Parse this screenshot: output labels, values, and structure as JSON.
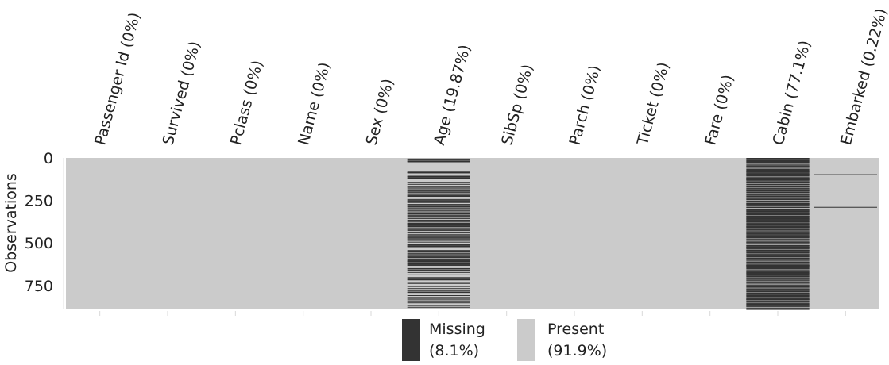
{
  "chart_data": {
    "type": "heatmap",
    "ylabel": "Observations",
    "y_ticks": [
      0,
      250,
      500,
      750
    ],
    "ylim": [
      0,
      891
    ],
    "columns": [
      {
        "label": "Passenger Id (0%)",
        "missing_pct": 0
      },
      {
        "label": "Survived (0%)",
        "missing_pct": 0
      },
      {
        "label": "Pclass (0%)",
        "missing_pct": 0
      },
      {
        "label": "Name (0%)",
        "missing_pct": 0
      },
      {
        "label": "Sex (0%)",
        "missing_pct": 0
      },
      {
        "label": "Age (19.87%)",
        "missing_pct": 19.87
      },
      {
        "label": "SibSp (0%)",
        "missing_pct": 0
      },
      {
        "label": "Parch (0%)",
        "missing_pct": 0
      },
      {
        "label": "Ticket (0%)",
        "missing_pct": 0
      },
      {
        "label": "Fare (0%)",
        "missing_pct": 0
      },
      {
        "label": "Cabin (77.1%)",
        "missing_pct": 77.1
      },
      {
        "label": "Embarked (0.22%)",
        "missing_pct": 0.22
      }
    ],
    "legend": [
      {
        "name": "Missing",
        "pct": "(8.1%)",
        "color": "#333333"
      },
      {
        "name": "Present",
        "pct": "(91.9%)",
        "color": "#cbcbcb"
      }
    ],
    "legend_position": "bottom",
    "grid": false
  }
}
